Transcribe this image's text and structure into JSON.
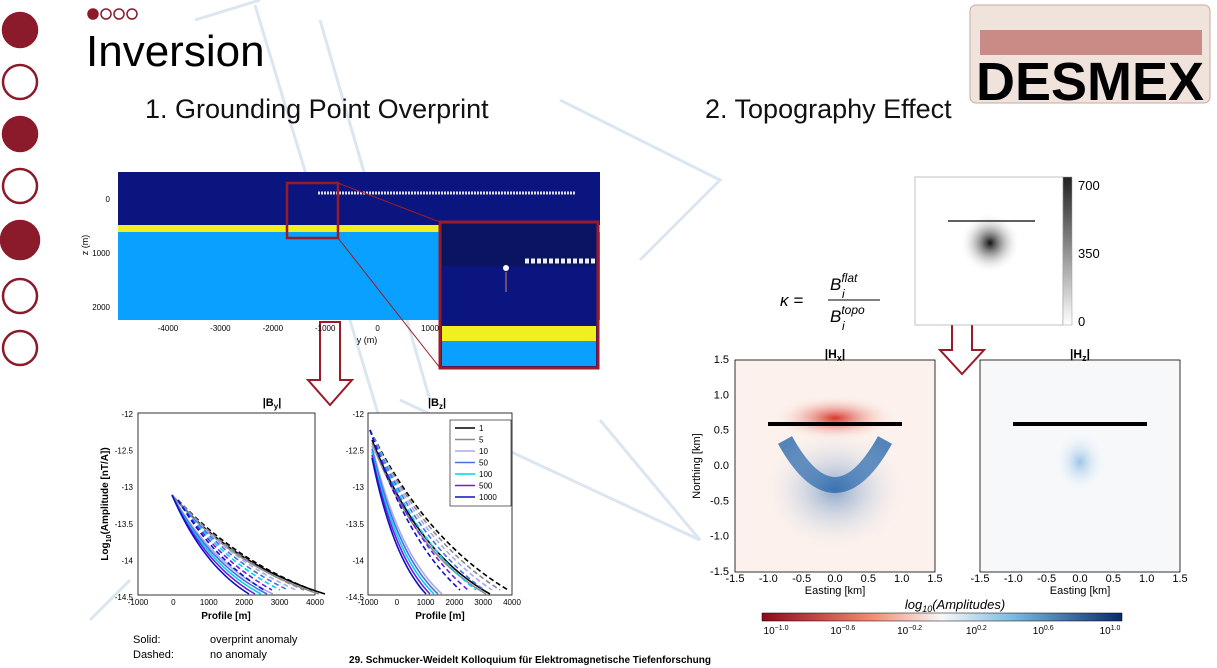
{
  "header": {
    "title": "Inversion"
  },
  "logo": {
    "text": "DESMEX"
  },
  "sections": [
    "1.  Grounding Point Overprint",
    "2.  Topography Effect"
  ],
  "model_section": {
    "ylabel": "z (m)",
    "yticks": [
      "0",
      "1000",
      "2000"
    ],
    "xticks": [
      "-4000",
      "-3000",
      "-2000",
      "-1000",
      "0",
      "1000"
    ],
    "xlabel": "y (m)"
  },
  "by_plot": {
    "title": {
      "open": "|B",
      "sub": "y",
      "close": "|"
    },
    "ylabel": {
      "pre": "Log",
      "sub": "10",
      "post": "(Amplitude [nT/A])"
    },
    "yticks": [
      "-12",
      "-12.5",
      "-13",
      "-13.5",
      "-14",
      "-14.5"
    ],
    "xticks": [
      "-1000",
      "0",
      "1000",
      "2000",
      "3000",
      "4000"
    ],
    "xlabel": "Profile [m]"
  },
  "bz_plot": {
    "title": {
      "open": "|B",
      "sub": "z",
      "close": "|"
    },
    "yticks": [
      "-12",
      "-12.5",
      "-13",
      "-13.5",
      "-14",
      "-14.5"
    ],
    "xticks": [
      "-1000",
      "0",
      "1000",
      "2000",
      "3000",
      "4000"
    ],
    "xlabel": "Profile [m]",
    "legend": [
      {
        "label": "1",
        "color": "#000000"
      },
      {
        "label": "5",
        "color": "#8a8a8a"
      },
      {
        "label": "10",
        "color": "#a8a8f0"
      },
      {
        "label": "50",
        "color": "#4a6fe0"
      },
      {
        "label": "100",
        "color": "#00d0f0"
      },
      {
        "label": "500",
        "color": "#6a20e0"
      },
      {
        "label": "1000",
        "color": "#1010c0"
      }
    ]
  },
  "line_note": {
    "rows": [
      [
        "Solid:",
        "overprint anomaly"
      ],
      [
        "Dashed:",
        "no anomaly"
      ]
    ]
  },
  "formula": {
    "lhs": "κ =",
    "num": {
      "base": "B",
      "sub": "i",
      "sup": "flat"
    },
    "den": {
      "base": "B",
      "sub": "i",
      "sup": "topo"
    }
  },
  "gray_colorbar": {
    "ticks": [
      "700",
      "350",
      "0"
    ]
  },
  "hx_plot": {
    "title": {
      "open": "|H",
      "sub": "x",
      "close": "|"
    },
    "ylabel": "Northing [km]",
    "yticks": [
      "1.5",
      "1.0",
      "0.5",
      "0.0",
      "-0.5",
      "-1.0",
      "-1.5"
    ],
    "xticks": [
      "-1.5",
      "-1.0",
      "-0.5",
      "0.0",
      "0.5",
      "1.0",
      "1.5"
    ],
    "xlabel": "Easting [km]"
  },
  "hz_plot": {
    "title": {
      "open": "|H",
      "sub": "z",
      "close": "|"
    },
    "xticks": [
      "-1.5",
      "-1.0",
      "-0.5",
      "0.0",
      "0.5",
      "1.0",
      "1.5"
    ],
    "xlabel": "Easting [km]"
  },
  "colorbar": {
    "title": {
      "pre": "log",
      "sub": "10",
      "post": "(Amplitudes)"
    },
    "ticks": [
      {
        "base": "10",
        "exp": "−1.0"
      },
      {
        "base": "10",
        "exp": "−0.6"
      },
      {
        "base": "10",
        "exp": "−0.2"
      },
      {
        "base": "10",
        "exp": "0.2"
      },
      {
        "base": "10",
        "exp": "0.6"
      },
      {
        "base": "10",
        "exp": "1.0"
      }
    ]
  },
  "footer": "29. Schmucker-Weidelt Kolloquium für Elektromagnetische Tiefenforschung"
}
